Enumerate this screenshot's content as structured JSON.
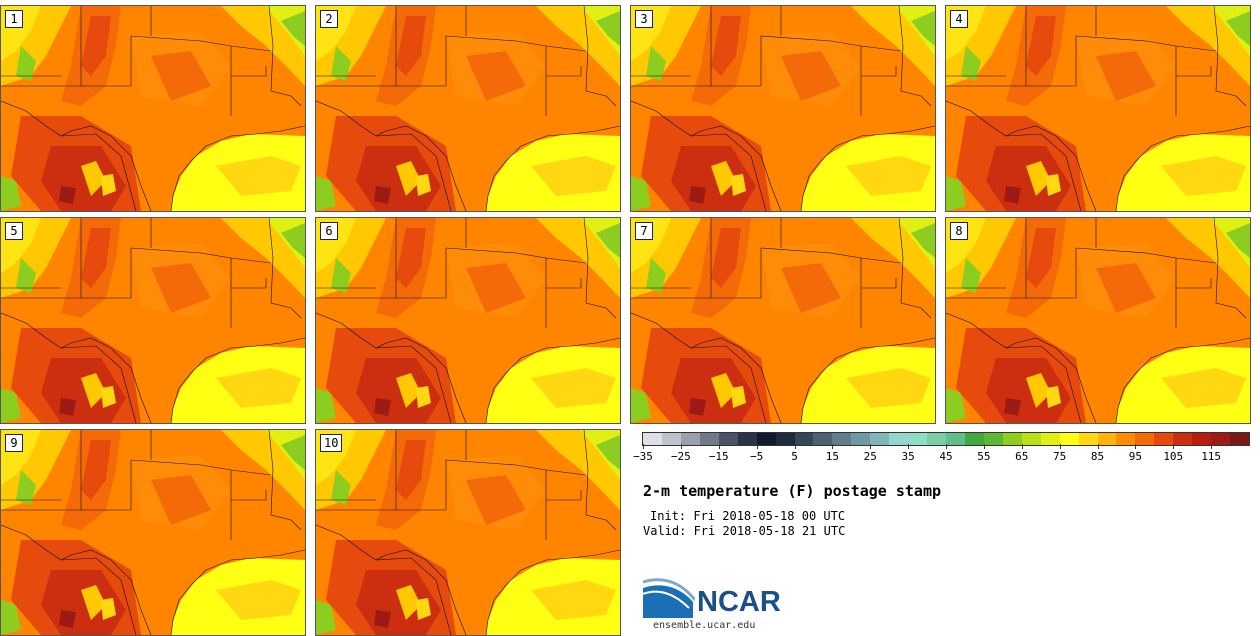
{
  "page_title": "2-m temperature (F) postage stamp",
  "members": [
    "1",
    "2",
    "3",
    "4",
    "5",
    "6",
    "7",
    "8",
    "9",
    "10"
  ],
  "colorbar": {
    "units": "F",
    "colors": [
      "#dde0e6",
      "#bfc4cc",
      "#9aa0aa",
      "#717a88",
      "#4a5466",
      "#2a3347",
      "#121a2c",
      "#1d2b40",
      "#34465a",
      "#4b6274",
      "#5f7e8e",
      "#6f9aa4",
      "#80b6b8",
      "#94d6cc",
      "#8fddc6",
      "#7ccda6",
      "#60bf86",
      "#43a83e",
      "#5cb832",
      "#8ccd20",
      "#b9df16",
      "#e0ef14",
      "#ffff14",
      "#ffd812",
      "#ffb30c",
      "#ff8c08",
      "#f46a08",
      "#e64a0c",
      "#cc2f10",
      "#b81e10",
      "#9e1a14",
      "#7a1a18"
    ],
    "labels": [
      "−35",
      "−25",
      "−15",
      "−5",
      "5",
      "15",
      "25",
      "35",
      "45",
      "55",
      "65",
      "75",
      "85",
      "95",
      "105",
      "115"
    ]
  },
  "info": {
    "init": "Init: Fri 2018-05-18 00 UTC",
    "valid": "Valid: Fri 2018-05-18 21 UTC"
  },
  "logo": {
    "name": "NCAR",
    "url": "ensemble.ucar.edu"
  }
}
